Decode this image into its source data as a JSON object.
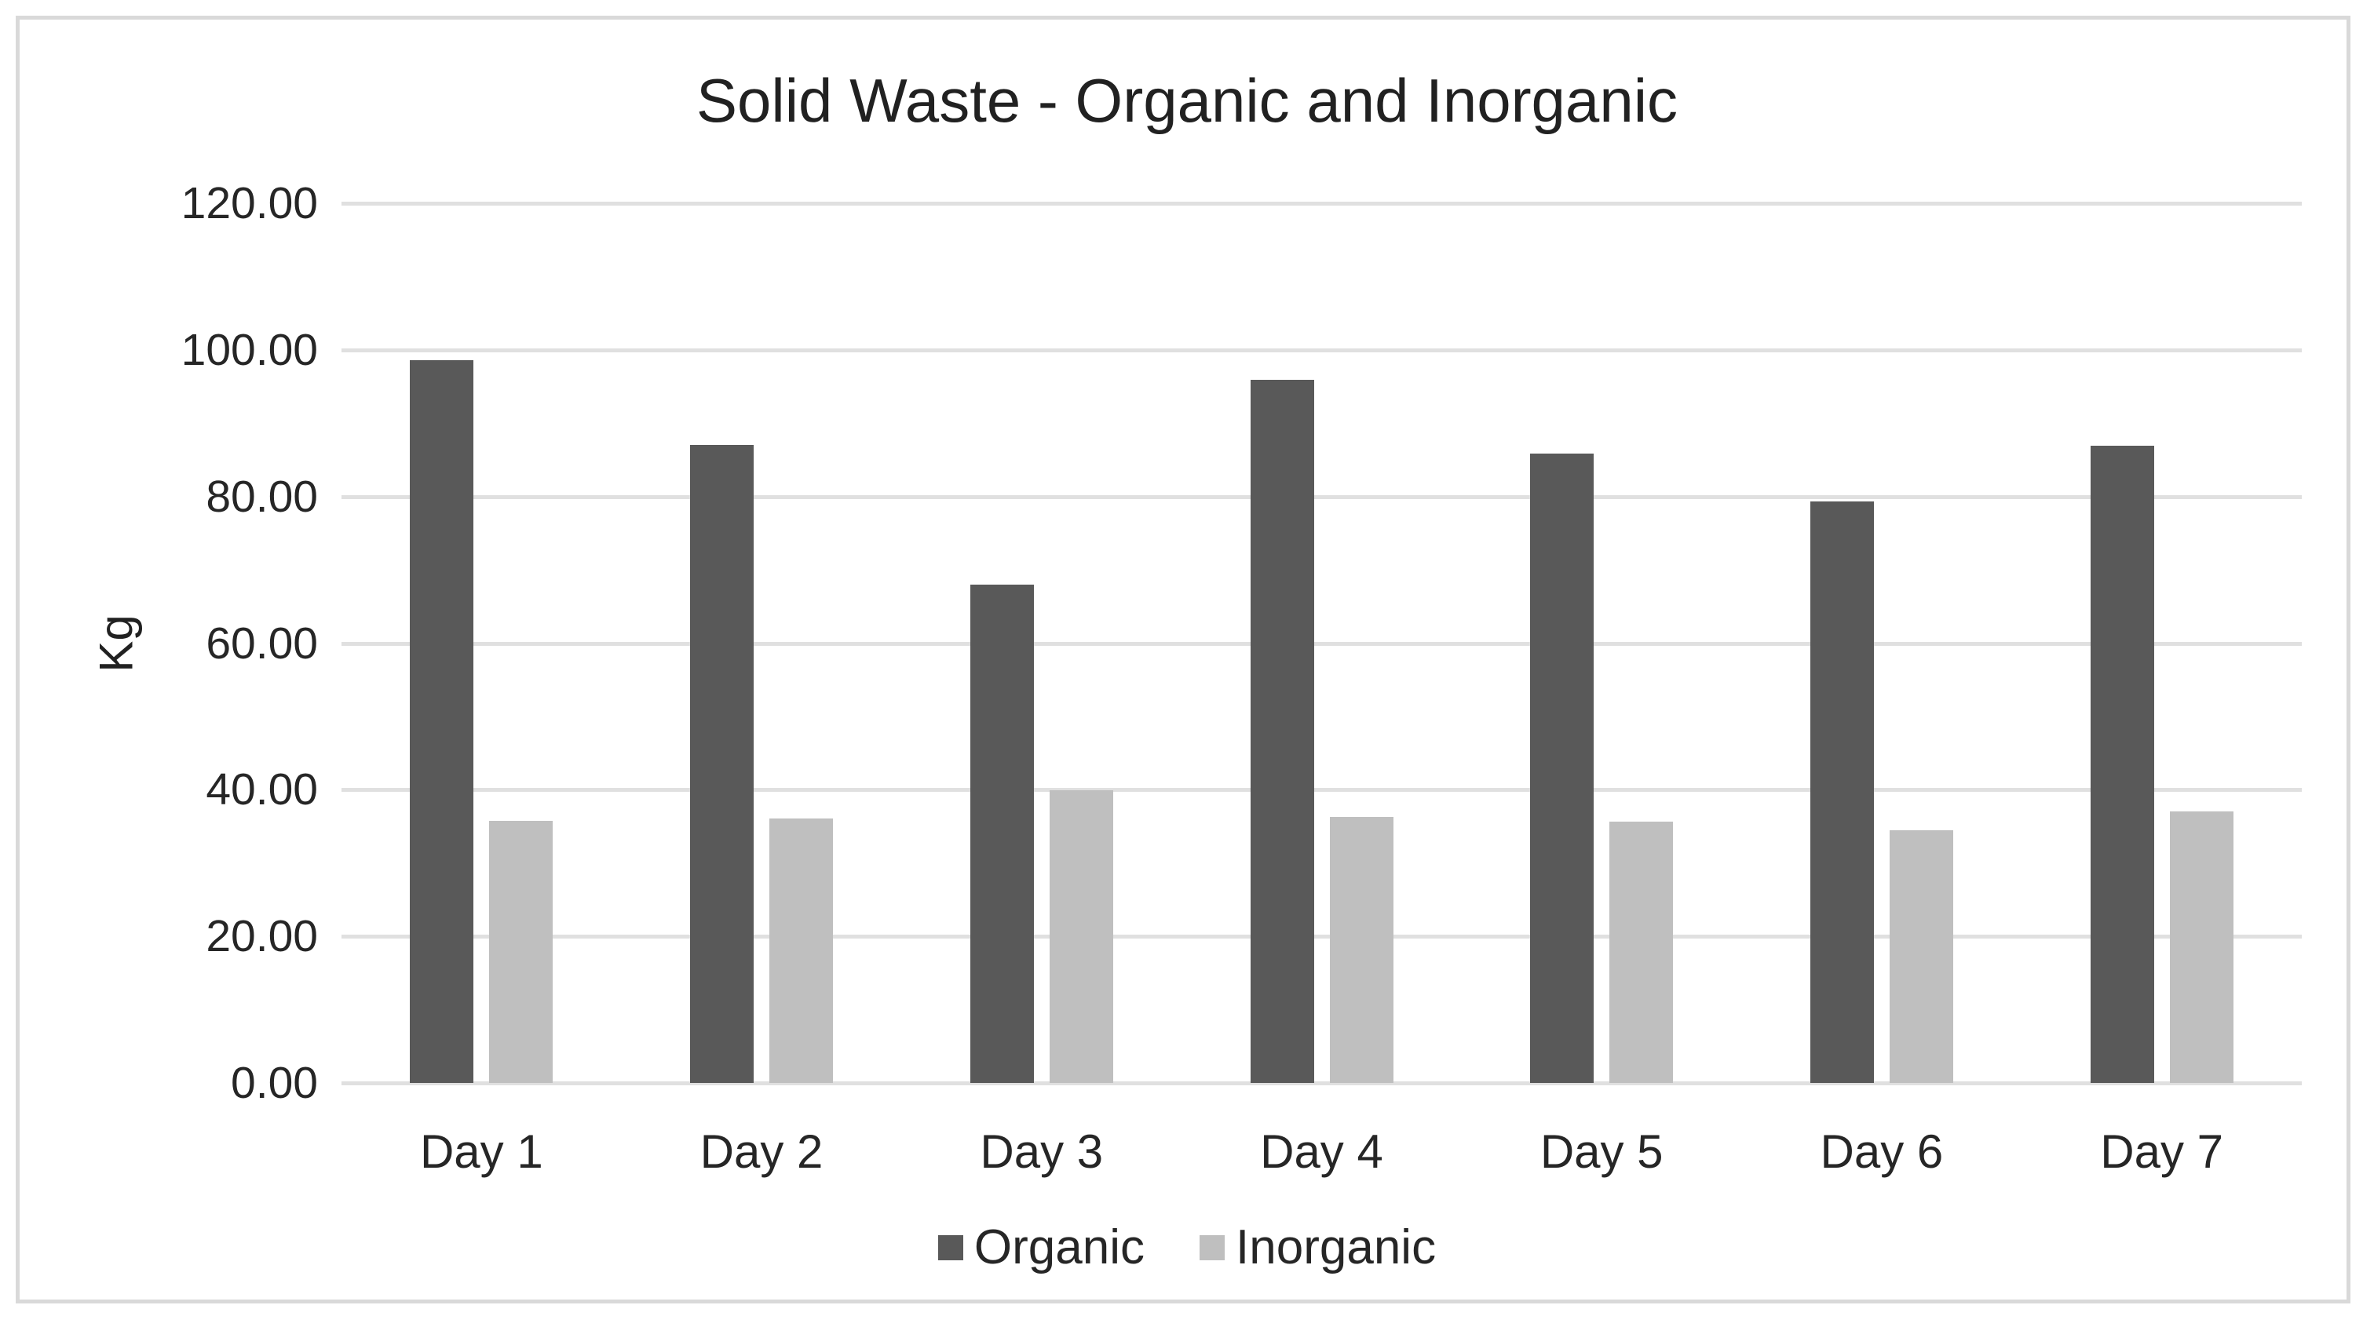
{
  "chart_data": {
    "type": "bar",
    "title": "Solid Waste - Organic and Inorganic",
    "xlabel": "",
    "ylabel": "Kg",
    "categories": [
      "Day 1",
      "Day 2",
      "Day 3",
      "Day 4",
      "Day 5",
      "Day 6",
      "Day 7"
    ],
    "series": [
      {
        "name": "Organic",
        "color": "#595959",
        "values": [
          98.6,
          87.0,
          68.0,
          95.9,
          85.9,
          79.3,
          86.9
        ]
      },
      {
        "name": "Inorganic",
        "color": "#bfbfbf",
        "values": [
          35.8,
          36.1,
          39.9,
          36.3,
          35.7,
          34.5,
          37.0
        ]
      }
    ],
    "ylim": [
      0,
      120
    ],
    "y_tick_step": 20,
    "y_tick_labels": [
      "0.00",
      "20.00",
      "40.00",
      "60.00",
      "80.00",
      "100.00",
      "120.00"
    ],
    "grid": "horizontal",
    "legend_position": "bottom",
    "gridline_color": "#e0e0e0",
    "border_color": "#d9d9d9",
    "text_color": "#262626"
  }
}
